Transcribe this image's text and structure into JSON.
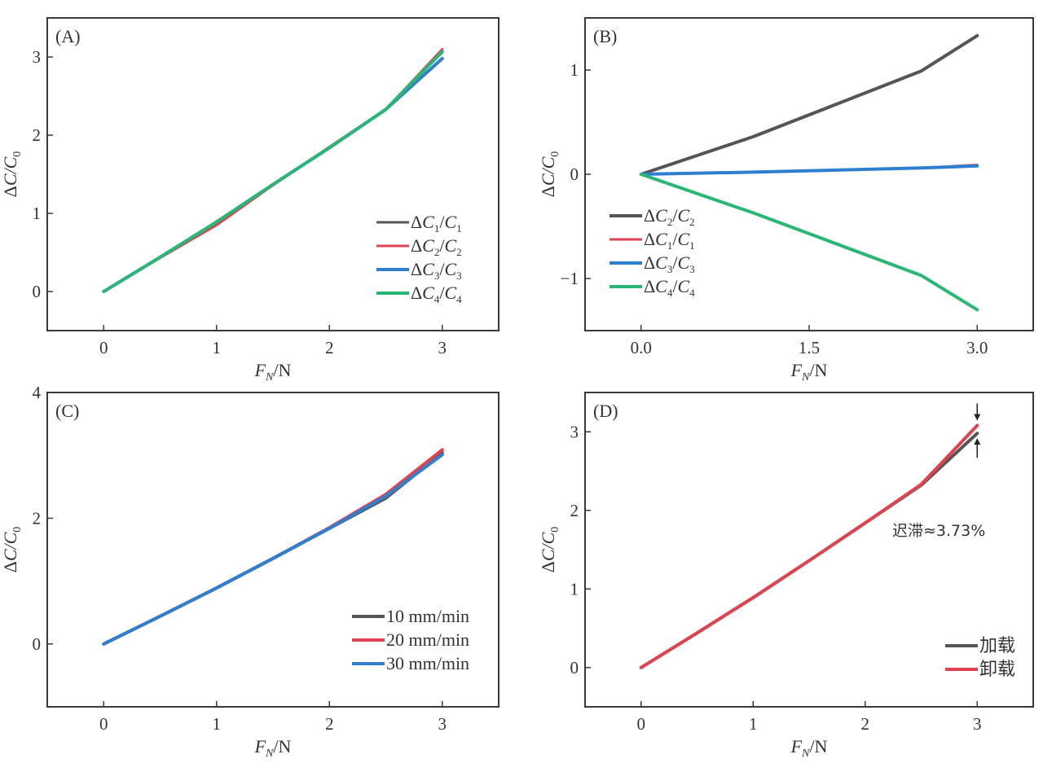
{
  "figure": {
    "panels_count": 4
  },
  "chart_data": [
    {
      "id": "A",
      "type": "line",
      "panel_label": "(A)",
      "xlabel": "F_N/N",
      "ylabel": "ΔC/C_0",
      "xlim": [
        -0.5,
        3.5
      ],
      "ylim": [
        -0.5,
        3.5
      ],
      "xticks": [
        0,
        1,
        2,
        3
      ],
      "xtick_labels": [
        "0",
        "1",
        "2",
        "3"
      ],
      "yticks": [
        0,
        1,
        2,
        3
      ],
      "ytick_labels": [
        "0",
        "1",
        "2",
        "3"
      ],
      "grid": false,
      "legend_position": "bottom-right",
      "x": [
        0,
        0.5,
        1,
        1.5,
        2,
        2.5,
        3
      ],
      "series": [
        {
          "name": "ΔC1/C1",
          "label_main": "ΔC",
          "sub1": "1",
          "mid": "/C",
          "sub2": "1",
          "color": "#555555",
          "width": 3,
          "values": [
            0,
            0.44,
            0.88,
            1.36,
            1.84,
            2.33,
            3.06
          ]
        },
        {
          "name": "ΔC2/C2",
          "label_main": "ΔC",
          "sub1": "2",
          "mid": "/C",
          "sub2": "2",
          "color": "#e0434f",
          "width": 3,
          "values": [
            0,
            0.43,
            0.85,
            1.36,
            1.85,
            2.33,
            3.1
          ]
        },
        {
          "name": "ΔC3/C3",
          "label_main": "ΔC",
          "sub1": "3",
          "mid": "/C",
          "sub2": "3",
          "color": "#2f7fd0",
          "width": 4,
          "values": [
            0,
            0.44,
            0.89,
            1.37,
            1.84,
            2.33,
            2.98
          ]
        },
        {
          "name": "ΔC4/C4",
          "label_main": "ΔC",
          "sub1": "4",
          "mid": "/C",
          "sub2": "4",
          "color": "#2ab673",
          "width": 4,
          "values": [
            0,
            0.44,
            0.89,
            1.37,
            1.84,
            2.33,
            3.07
          ]
        }
      ]
    },
    {
      "id": "B",
      "type": "line",
      "panel_label": "(B)",
      "xlabel": "F_N/N",
      "ylabel": "ΔC/C_0",
      "xlim": [
        -0.5,
        3.5
      ],
      "ylim": [
        -1.5,
        1.5
      ],
      "xticks": [
        0,
        1.5,
        3
      ],
      "xtick_labels": [
        "0.0",
        "1.5",
        "3.0"
      ],
      "yticks": [
        -1,
        0,
        1
      ],
      "ytick_labels": [
        "−1",
        "0",
        "1"
      ],
      "grid": false,
      "legend_position": "bottom-left",
      "x": [
        0,
        1,
        2.5,
        3
      ],
      "series": [
        {
          "name": "ΔC2/C2",
          "label_main": "ΔC",
          "sub1": "2",
          "mid": "/C",
          "sub2": "2",
          "color": "#555555",
          "width": 4,
          "values": [
            0,
            0.36,
            0.99,
            1.33
          ]
        },
        {
          "name": "ΔC1/C1",
          "label_main": "ΔC",
          "sub1": "1",
          "mid": "/C",
          "sub2": "1",
          "color": "#e0434f",
          "width": 3,
          "values": [
            0,
            0.02,
            0.06,
            0.09
          ]
        },
        {
          "name": "ΔC3/C3",
          "label_main": "ΔC",
          "sub1": "3",
          "mid": "/C",
          "sub2": "3",
          "color": "#2f7fd0",
          "width": 4,
          "values": [
            0,
            0.02,
            0.06,
            0.08
          ]
        },
        {
          "name": "ΔC4/C4",
          "label_main": "ΔC",
          "sub1": "4",
          "mid": "/C",
          "sub2": "4",
          "color": "#2ab673",
          "width": 4,
          "values": [
            0,
            -0.37,
            -0.97,
            -1.3
          ]
        }
      ]
    },
    {
      "id": "C",
      "type": "line",
      "panel_label": "(C)",
      "xlabel": "F_N/N",
      "ylabel": "ΔC/C_0",
      "xlim": [
        -0.5,
        3.5
      ],
      "ylim": [
        -1,
        4
      ],
      "xticks": [
        0,
        1,
        2,
        3
      ],
      "xtick_labels": [
        "0",
        "1",
        "2",
        "3"
      ],
      "yticks": [
        0,
        2,
        4
      ],
      "ytick_labels": [
        "0",
        "2",
        "4"
      ],
      "grid": false,
      "legend_position": "bottom-right",
      "x": [
        0,
        0.5,
        1,
        1.5,
        2,
        2.5,
        3
      ],
      "series": [
        {
          "name": "10 mm/min",
          "label_main": "10 mm/min",
          "color": "#555555",
          "width": 4,
          "values": [
            0,
            0.44,
            0.89,
            1.36,
            1.84,
            2.32,
            3.04
          ]
        },
        {
          "name": "20 mm/min",
          "label_main": "20 mm/min",
          "color": "#e0434f",
          "width": 4,
          "values": [
            0,
            0.44,
            0.89,
            1.36,
            1.85,
            2.38,
            3.09
          ]
        },
        {
          "name": "30 mm/min",
          "label_main": "30 mm/min",
          "color": "#2f7fd0",
          "width": 4,
          "values": [
            0,
            0.44,
            0.89,
            1.36,
            1.84,
            2.35,
            3.01
          ]
        }
      ]
    },
    {
      "id": "D",
      "type": "line",
      "panel_label": "(D)",
      "xlabel": "F_N/N",
      "ylabel": "ΔC/C_0",
      "xlim": [
        -0.5,
        3.5
      ],
      "ylim": [
        -0.5,
        3.5
      ],
      "xticks": [
        0,
        1,
        2,
        3
      ],
      "xtick_labels": [
        "0",
        "1",
        "2",
        "3"
      ],
      "yticks": [
        0,
        1,
        2,
        3
      ],
      "ytick_labels": [
        "0",
        "1",
        "2",
        "3"
      ],
      "grid": false,
      "legend_position": "bottom-right",
      "annotation": "迟滞≈3.73%",
      "x": [
        0,
        0.5,
        1,
        1.5,
        2,
        2.5,
        3
      ],
      "series": [
        {
          "name": "加载",
          "label_main": "加载",
          "color": "#555555",
          "width": 4,
          "values": [
            0,
            0.44,
            0.89,
            1.36,
            1.84,
            2.32,
            2.98
          ]
        },
        {
          "name": "卸载",
          "label_main": "卸载",
          "color": "#e0434f",
          "width": 4,
          "values": [
            0,
            0.44,
            0.89,
            1.36,
            1.84,
            2.33,
            3.08
          ]
        }
      ]
    }
  ]
}
